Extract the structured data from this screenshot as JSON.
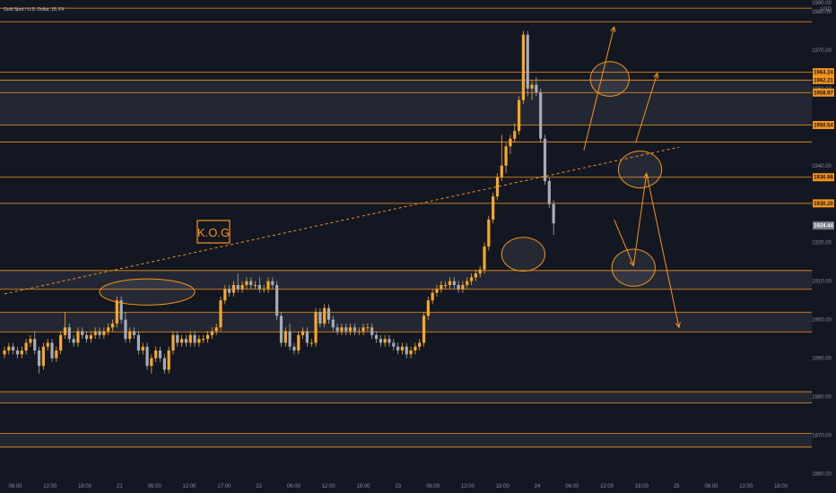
{
  "header": {
    "symbol_text": "Gold Spot / U.S. Dollar, 15, FX",
    "currency": "USD"
  },
  "watermark": "K.O.G",
  "colors": {
    "background": "#131722",
    "level_line": "#f7931a",
    "zone_fill": "#2a2e39",
    "bull_candle": "#f7a829",
    "bear_candle": "#a7abb5",
    "current_price_bg": "#787b86",
    "grid": "#1c2030"
  },
  "chart_data": {
    "type": "candlestick",
    "y_axis": {
      "range": [
        1855,
        1983
      ],
      "ticks": [
        1860,
        1870,
        1880,
        1890,
        1900,
        1910,
        1920,
        1930,
        1940,
        1950,
        1960,
        1970,
        1980
      ],
      "tick_labels": [
        "1860.00",
        "1870.00",
        "1880.00",
        "1890.00",
        "1900.00",
        "1910.00",
        "1920.00",
        "1930.00",
        "1940.00",
        "1950.00",
        "1960.00",
        "1970.00",
        "1980.00"
      ],
      "top_label": "1990.00"
    },
    "x_axis": {
      "labels": [
        "06:00",
        "12:00",
        "18:00",
        "21",
        "06:00",
        "12:00",
        "17:00",
        "22",
        "06:00",
        "12:00",
        "18:00",
        "23",
        "06:00",
        "12:00",
        "18:00",
        "24",
        "06:00",
        "12:00",
        "18:00",
        "25",
        "06:00",
        "12:00",
        "18:00"
      ]
    },
    "level_lines": [
      1980.88,
      1977.36,
      1964.24,
      1962.21,
      1958.97,
      1950.54,
      1946.16,
      1936.98,
      1930.2,
      1912.76,
      1907.88,
      1901.95,
      1896.83,
      1881.28,
      1878.42,
      1870.5,
      1866.91
    ],
    "zones": [
      [
        1950.54,
        1962.21
      ],
      [
        1907.88,
        1912.76
      ],
      [
        1896.83,
        1901.95
      ],
      [
        1878.42,
        1881.28
      ],
      [
        1866.91,
        1870.5
      ]
    ],
    "price_labels": [
      {
        "value": 1964.24,
        "text": "1964.24"
      },
      {
        "value": 1962.21,
        "text": "1962.21"
      },
      {
        "value": 1958.97,
        "text": "1958.97"
      },
      {
        "value": 1950.54,
        "text": "1950.54"
      },
      {
        "value": 1936.98,
        "text": "1936.98"
      },
      {
        "value": 1930.2,
        "text": "1930.20"
      }
    ],
    "current_price": {
      "value": 1924.44,
      "text": "1924.44"
    },
    "candles": [
      [
        1891,
        1893,
        1890,
        1892
      ],
      [
        1892,
        1894,
        1891,
        1893
      ],
      [
        1893,
        1894,
        1891,
        1892
      ],
      [
        1892,
        1893,
        1890,
        1891
      ],
      [
        1891,
        1893,
        1890,
        1892
      ],
      [
        1892,
        1895,
        1891,
        1894
      ],
      [
        1894,
        1896,
        1893,
        1895
      ],
      [
        1895,
        1897,
        1891,
        1892
      ],
      [
        1892,
        1893,
        1886,
        1888
      ],
      [
        1888,
        1894,
        1887,
        1893
      ],
      [
        1893,
        1895,
        1892,
        1894
      ],
      [
        1894,
        1895,
        1889,
        1890
      ],
      [
        1890,
        1893,
        1889,
        1892
      ],
      [
        1892,
        1897,
        1891,
        1896
      ],
      [
        1896,
        1902,
        1895,
        1898
      ],
      [
        1898,
        1899,
        1894,
        1895
      ],
      [
        1895,
        1896,
        1893,
        1894
      ],
      [
        1894,
        1898,
        1893,
        1897
      ],
      [
        1897,
        1898,
        1895,
        1896
      ],
      [
        1896,
        1897,
        1894,
        1895
      ],
      [
        1895,
        1897,
        1894,
        1896
      ],
      [
        1896,
        1898,
        1895,
        1897
      ],
      [
        1897,
        1898,
        1895,
        1896
      ],
      [
        1896,
        1898,
        1895,
        1897
      ],
      [
        1897,
        1899,
        1896,
        1898
      ],
      [
        1898,
        1900,
        1897,
        1899
      ],
      [
        1899,
        1906,
        1898,
        1905
      ],
      [
        1905,
        1906,
        1899,
        1900
      ],
      [
        1900,
        1902,
        1894,
        1895
      ],
      [
        1895,
        1898,
        1894,
        1897
      ],
      [
        1897,
        1898,
        1895,
        1896
      ],
      [
        1896,
        1897,
        1891,
        1892
      ],
      [
        1892,
        1894,
        1891,
        1893
      ],
      [
        1893,
        1894,
        1887,
        1888
      ],
      [
        1888,
        1891,
        1886,
        1890
      ],
      [
        1890,
        1893,
        1889,
        1892
      ],
      [
        1892,
        1893,
        1889,
        1890
      ],
      [
        1890,
        1891,
        1886,
        1887
      ],
      [
        1887,
        1893,
        1886,
        1892
      ],
      [
        1892,
        1897,
        1891,
        1896
      ],
      [
        1896,
        1897,
        1893,
        1894
      ],
      [
        1894,
        1896,
        1893,
        1895
      ],
      [
        1895,
        1896,
        1893,
        1894
      ],
      [
        1894,
        1897,
        1893,
        1896
      ],
      [
        1896,
        1897,
        1893,
        1894
      ],
      [
        1894,
        1896,
        1893,
        1895
      ],
      [
        1895,
        1896,
        1894,
        1895
      ],
      [
        1895,
        1897,
        1894,
        1896
      ],
      [
        1896,
        1898,
        1895,
        1897
      ],
      [
        1897,
        1899,
        1896,
        1898
      ],
      [
        1898,
        1906,
        1897,
        1905
      ],
      [
        1905,
        1909,
        1904,
        1908
      ],
      [
        1908,
        1909,
        1906,
        1907
      ],
      [
        1907,
        1910,
        1906,
        1909
      ],
      [
        1909,
        1912,
        1907,
        1908
      ],
      [
        1908,
        1910,
        1907,
        1909
      ],
      [
        1909,
        1911,
        1908,
        1910
      ],
      [
        1910,
        1911,
        1908,
        1909
      ],
      [
        1909,
        1910,
        1908,
        1909
      ],
      [
        1909,
        1911,
        1907,
        1908
      ],
      [
        1908,
        1909,
        1907,
        1908
      ],
      [
        1908,
        1911,
        1907,
        1910
      ],
      [
        1910,
        1911,
        1908,
        1909
      ],
      [
        1909,
        1910,
        1900,
        1901
      ],
      [
        1901,
        1902,
        1893,
        1894
      ],
      [
        1894,
        1898,
        1893,
        1897
      ],
      [
        1897,
        1899,
        1892,
        1893
      ],
      [
        1893,
        1894,
        1891,
        1892
      ],
      [
        1892,
        1897,
        1891,
        1896
      ],
      [
        1896,
        1898,
        1895,
        1897
      ],
      [
        1897,
        1898,
        1893,
        1894
      ],
      [
        1894,
        1895,
        1893,
        1894
      ],
      [
        1894,
        1903,
        1893,
        1902
      ],
      [
        1902,
        1903,
        1898,
        1899
      ],
      [
        1899,
        1904,
        1898,
        1903
      ],
      [
        1903,
        1904,
        1899,
        1900
      ],
      [
        1900,
        1901,
        1897,
        1898
      ],
      [
        1898,
        1899,
        1896,
        1897
      ],
      [
        1897,
        1899,
        1896,
        1898
      ],
      [
        1898,
        1899,
        1896,
        1897
      ],
      [
        1897,
        1899,
        1896,
        1898
      ],
      [
        1898,
        1899,
        1896,
        1897
      ],
      [
        1897,
        1898,
        1896,
        1897
      ],
      [
        1897,
        1899,
        1896,
        1898
      ],
      [
        1898,
        1899,
        1897,
        1898
      ],
      [
        1898,
        1899,
        1895,
        1896
      ],
      [
        1896,
        1897,
        1894,
        1895
      ],
      [
        1895,
        1896,
        1893,
        1894
      ],
      [
        1894,
        1896,
        1893,
        1895
      ],
      [
        1895,
        1896,
        1893,
        1894
      ],
      [
        1894,
        1895,
        1892,
        1893
      ],
      [
        1893,
        1894,
        1891,
        1892
      ],
      [
        1892,
        1894,
        1891,
        1893
      ],
      [
        1893,
        1894,
        1890,
        1891
      ],
      [
        1891,
        1893,
        1890,
        1892
      ],
      [
        1892,
        1894,
        1891,
        1893
      ],
      [
        1893,
        1895,
        1892,
        1894
      ],
      [
        1894,
        1902,
        1893,
        1901
      ],
      [
        1901,
        1906,
        1900,
        1905
      ],
      [
        1905,
        1908,
        1904,
        1907
      ],
      [
        1907,
        1909,
        1906,
        1908
      ],
      [
        1908,
        1910,
        1907,
        1909
      ],
      [
        1909,
        1910,
        1908,
        1909
      ],
      [
        1909,
        1911,
        1908,
        1910
      ],
      [
        1910,
        1911,
        1908,
        1909
      ],
      [
        1909,
        1910,
        1907,
        1908
      ],
      [
        1908,
        1910,
        1907,
        1909
      ],
      [
        1909,
        1911,
        1908,
        1910
      ],
      [
        1910,
        1912,
        1909,
        1911
      ],
      [
        1911,
        1913,
        1910,
        1912
      ],
      [
        1912,
        1914,
        1911,
        1913
      ],
      [
        1913,
        1920,
        1912,
        1919
      ],
      [
        1919,
        1927,
        1918,
        1926
      ],
      [
        1926,
        1933,
        1925,
        1932
      ],
      [
        1932,
        1938,
        1931,
        1937
      ],
      [
        1937,
        1948,
        1936,
        1940
      ],
      [
        1940,
        1946,
        1938,
        1945
      ],
      [
        1945,
        1948,
        1943,
        1947
      ],
      [
        1947,
        1951,
        1946,
        1949
      ],
      [
        1949,
        1958,
        1948,
        1957
      ],
      [
        1957,
        1975,
        1956,
        1974
      ],
      [
        1974,
        1975,
        1958,
        1960
      ],
      [
        1960,
        1962,
        1957,
        1961
      ],
      [
        1961,
        1963,
        1958,
        1959
      ],
      [
        1959,
        1960,
        1946,
        1947
      ],
      [
        1947,
        1948,
        1935,
        1936
      ],
      [
        1936,
        1937,
        1929,
        1930
      ],
      [
        1930,
        1931,
        1922,
        1925
      ]
    ],
    "trendline": {
      "from": {
        "candle": 0,
        "value": 1906.7
      },
      "to": {
        "candle": 156,
        "value": 1944.8
      }
    },
    "ellipses": [
      {
        "candle": 33,
        "value": 1907.2,
        "rx_candles": 11,
        "ry_value": 3.4
      },
      {
        "candle": 120,
        "value": 1917.0,
        "rx_candles": 5,
        "ry_value": 4.4
      },
      {
        "candle": 140,
        "value": 1962.5,
        "rx_candles": 4.5,
        "ry_value": 4.5
      },
      {
        "candle": 147,
        "value": 1939.0,
        "rx_candles": 5,
        "ry_value": 4.8
      },
      {
        "candle": 145.5,
        "value": 1913.5,
        "rx_candles": 5,
        "ry_value": 4.8
      }
    ],
    "arrows": [
      {
        "from": {
          "candle": 134,
          "value": 1944
        },
        "to": {
          "candle": 141,
          "value": 1976
        }
      },
      {
        "from": {
          "candle": 146,
          "value": 1946
        },
        "to": {
          "candle": 151,
          "value": 1964
        }
      },
      {
        "from": {
          "candle": 145.5,
          "value": 1914
        },
        "to": {
          "candle": 148.5,
          "value": 1938
        }
      },
      {
        "from": {
          "candle": 148.5,
          "value": 1938
        },
        "to": {
          "candle": 156,
          "value": 1898
        }
      },
      {
        "from": {
          "candle": 141,
          "value": 1926
        },
        "to": {
          "candle": 145.5,
          "value": 1914
        }
      }
    ]
  }
}
